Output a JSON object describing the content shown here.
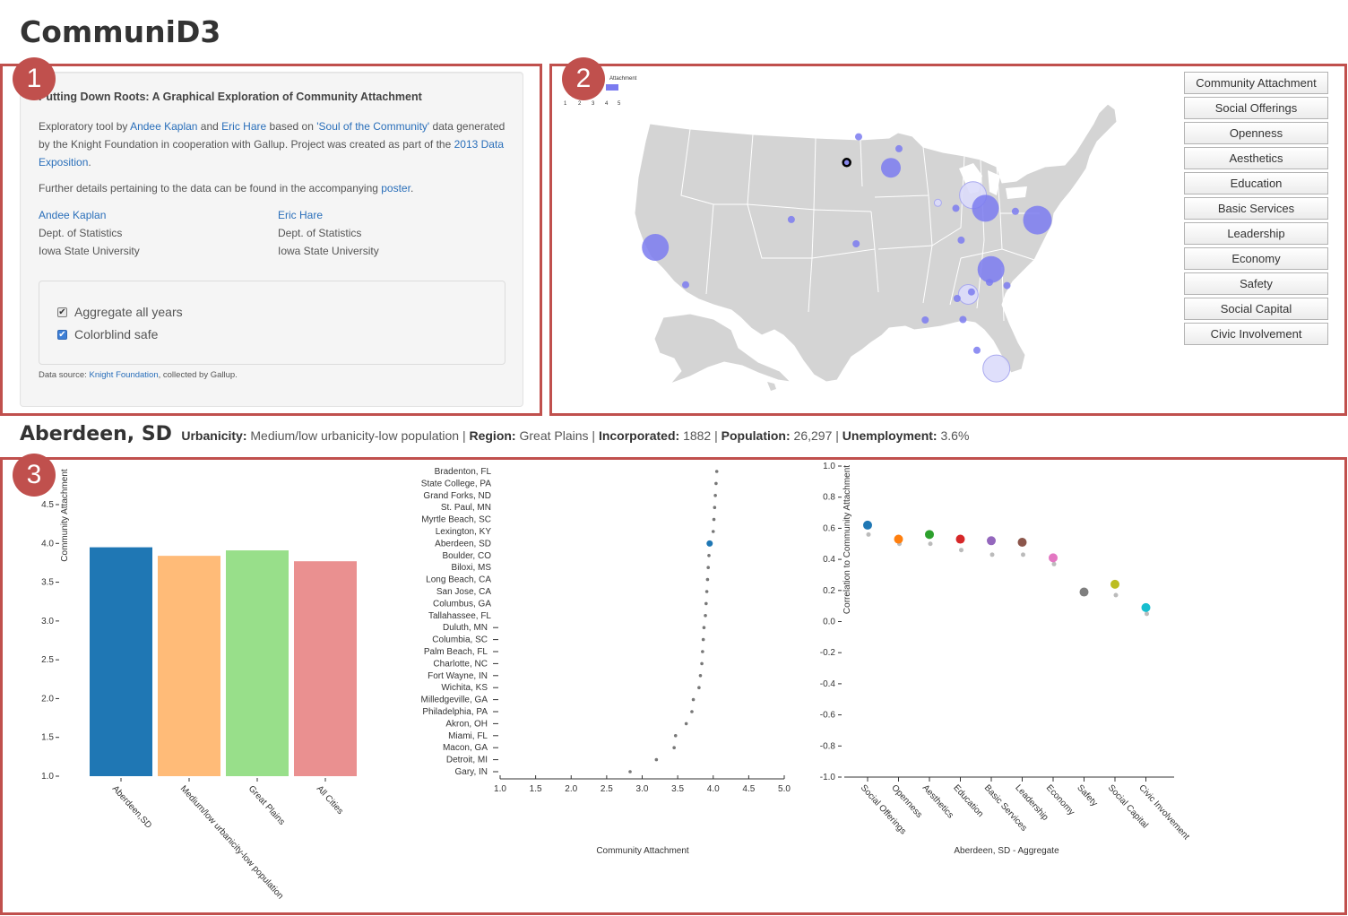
{
  "app": {
    "title": "CommuniD3"
  },
  "badges": [
    "1",
    "2",
    "3"
  ],
  "info": {
    "heading": "Putting Down Roots: A Graphical Exploration of Community Attachment",
    "p1_a": "Exploratory tool by ",
    "p1_author1": "Andee Kaplan",
    "p1_b": " and ",
    "p1_author2": "Eric Hare",
    "p1_c": " based on ",
    "p1_data_link": "'Soul of the Community'",
    "p1_d": " data generated by the Knight Foundation in cooperation with Gallup. Project was created as part of the ",
    "p1_expo_link": "2013 Data Exposition",
    "p1_e": ".",
    "p2_a": "Further details pertaining to the data can be found in the accompanying ",
    "p2_poster_link": "poster",
    "p2_b": ".",
    "authors": [
      {
        "name": "Andee Kaplan",
        "dept": "Dept. of Statistics",
        "univ": "Iowa State University"
      },
      {
        "name": "Eric Hare",
        "dept": "Dept. of Statistics",
        "univ": "Iowa State University"
      }
    ],
    "options": {
      "aggregate_label": "Aggregate all years",
      "aggregate_checked": true,
      "colorblind_label": "Colorblind safe",
      "colorblind_checked": true
    },
    "source_a": "Data source: ",
    "source_link": "Knight Foundation",
    "source_b": ", collected by Gallup."
  },
  "map": {
    "legend_title": "Attachment",
    "legend_ticks": [
      "1",
      "2",
      "3",
      "4",
      "5"
    ],
    "land_color": "#d4d4d4",
    "border_color": "#ffffff",
    "bubble_color": "#7b7bf0",
    "cities": [
      {
        "name": "Aberdeen, SD",
        "lon": -98.49,
        "lat": 45.46,
        "r": 4,
        "selected": true
      },
      {
        "name": "Grand Forks, ND",
        "lon": -97.03,
        "lat": 47.92,
        "r": 4
      },
      {
        "name": "Duluth, MN",
        "lon": -92.1,
        "lat": 46.78,
        "r": 4
      },
      {
        "name": "St. Paul, MN",
        "lon": -93.09,
        "lat": 44.95,
        "r": 11
      },
      {
        "name": "Boulder, CO",
        "lon": -105.27,
        "lat": 40.01,
        "r": 4
      },
      {
        "name": "Wichita, KS",
        "lon": -97.34,
        "lat": 37.69,
        "r": 4
      },
      {
        "name": "San Jose, CA",
        "lon": -121.89,
        "lat": 37.34,
        "r": 15
      },
      {
        "name": "Long Beach, CA",
        "lon": -118.19,
        "lat": 33.77,
        "r": 4
      },
      {
        "name": "Gary, IN",
        "lon": -87.35,
        "lat": 41.6,
        "r": 4,
        "light": true
      },
      {
        "name": "Fort Wayne, IN",
        "lon": -85.14,
        "lat": 41.08,
        "r": 4
      },
      {
        "name": "Detroit, MI",
        "lon": -83.05,
        "lat": 42.33,
        "r": 15,
        "light": true
      },
      {
        "name": "Akron, OH",
        "lon": -81.52,
        "lat": 41.08,
        "r": 15
      },
      {
        "name": "State College, PA",
        "lon": -77.86,
        "lat": 40.79,
        "r": 4
      },
      {
        "name": "Philadelphia, PA",
        "lon": -75.17,
        "lat": 39.95,
        "r": 16
      },
      {
        "name": "Lexington, KY",
        "lon": -84.5,
        "lat": 38.04,
        "r": 4
      },
      {
        "name": "Charlotte, NC",
        "lon": -80.84,
        "lat": 35.23,
        "r": 15
      },
      {
        "name": "Columbia, SC",
        "lon": -81.03,
        "lat": 34.0,
        "r": 4
      },
      {
        "name": "Myrtle Beach, SC",
        "lon": -78.89,
        "lat": 33.69,
        "r": 4
      },
      {
        "name": "Macon, GA",
        "lon": -83.63,
        "lat": 32.84,
        "r": 11,
        "light": true
      },
      {
        "name": "Milledgeville, GA",
        "lon": -83.23,
        "lat": 33.08,
        "r": 4
      },
      {
        "name": "Columbus, GA",
        "lon": -84.99,
        "lat": 32.46,
        "r": 4
      },
      {
        "name": "Biloxi, MS",
        "lon": -88.89,
        "lat": 30.4,
        "r": 4
      },
      {
        "name": "Tallahassee, FL",
        "lon": -84.28,
        "lat": 30.44,
        "r": 4
      },
      {
        "name": "Bradenton, FL",
        "lon": -82.57,
        "lat": 27.5,
        "r": 4
      },
      {
        "name": "Miami, FL",
        "lon": -80.19,
        "lat": 25.76,
        "r": 15,
        "light": true
      }
    ]
  },
  "metrics": [
    "Community Attachment",
    "Social Offerings",
    "Openness",
    "Aesthetics",
    "Education",
    "Basic Services",
    "Leadership",
    "Economy",
    "Safety",
    "Social Capital",
    "Civic Involvement"
  ],
  "detail": {
    "city": "Aberdeen, SD",
    "fields": [
      {
        "label": "Urbanicity:",
        "value": "Medium/low urbanicity-low population"
      },
      {
        "label": "Region:",
        "value": "Great Plains"
      },
      {
        "label": "Incorporated:",
        "value": "1882"
      },
      {
        "label": "Population:",
        "value": "26,297"
      },
      {
        "label": "Unemployment:",
        "value": "3.6%"
      }
    ]
  },
  "chart_data": [
    {
      "type": "bar",
      "ylabel": "Community Attachment",
      "ylim": [
        1.0,
        4.5
      ],
      "yticks": [
        "1.0",
        "1.5",
        "2.0",
        "2.5",
        "3.0",
        "3.5",
        "4.0",
        "4.5"
      ],
      "categories": [
        "Aberdeen,SD",
        "Medium/low urbanicity-low population",
        "Great Plains",
        "All Cities"
      ],
      "values": [
        3.95,
        3.84,
        3.91,
        3.77
      ],
      "colors": [
        "#1f77b4",
        "#ffbb78",
        "#98df8a",
        "#ea9090"
      ]
    },
    {
      "type": "scatter",
      "xlabel": "Community Attachment",
      "xlim": [
        1.0,
        5.0
      ],
      "xticks": [
        "1.0",
        "1.5",
        "2.0",
        "2.5",
        "3.0",
        "3.5",
        "4.0",
        "4.5",
        "5.0"
      ],
      "categories": [
        "Bradenton, FL",
        "State College, PA",
        "Grand Forks, ND",
        "St. Paul, MN",
        "Myrtle Beach, SC",
        "Lexington, KY",
        "Aberdeen, SD",
        "Boulder, CO",
        "Biloxi, MS",
        "Long Beach, CA",
        "San Jose, CA",
        "Columbus, GA",
        "Tallahassee, FL",
        "Duluth, MN",
        "Columbia, SC",
        "Palm Beach, FL",
        "Charlotte, NC",
        "Fort Wayne, IN",
        "Wichita, KS",
        "Milledgeville, GA",
        "Philadelphia, PA",
        "Akron, OH",
        "Miami, FL",
        "Macon, GA",
        "Detroit, MI",
        "Gary, IN"
      ],
      "values": [
        4.05,
        4.04,
        4.03,
        4.02,
        4.01,
        4.0,
        3.95,
        3.94,
        3.93,
        3.92,
        3.91,
        3.9,
        3.89,
        3.87,
        3.86,
        3.85,
        3.84,
        3.82,
        3.8,
        3.72,
        3.7,
        3.62,
        3.47,
        3.45,
        3.2,
        2.83
      ],
      "highlight": "Aberdeen, SD",
      "dash_from_index": 13
    },
    {
      "type": "scatter",
      "xlabel": "Aberdeen, SD - Aggregate",
      "ylabel": "Correlation to Community Attachment",
      "ylim": [
        -1.0,
        1.0
      ],
      "yticks": [
        "1.0",
        "0.8",
        "0.6",
        "0.4",
        "0.2",
        "0.0",
        "-0.2",
        "-0.4",
        "-0.6",
        "-0.8",
        "-1.0"
      ],
      "categories": [
        "Social Offerings",
        "Openness",
        "Aesthetics",
        "Education",
        "Basic Services",
        "Leadership",
        "Economy",
        "Safety",
        "Social Capital",
        "Civic Involvement"
      ],
      "values": [
        0.62,
        0.53,
        0.56,
        0.53,
        0.52,
        0.51,
        0.41,
        0.19,
        0.24,
        0.09
      ],
      "reference_values": [
        0.56,
        0.5,
        0.5,
        0.46,
        0.43,
        0.43,
        0.37,
        0.19,
        0.17,
        0.05
      ],
      "colors": [
        "#1f77b4",
        "#ff7f0e",
        "#2ca02c",
        "#d62728",
        "#9467bd",
        "#8c564b",
        "#e377c2",
        "#7f7f7f",
        "#bcbd22",
        "#17becf"
      ],
      "reference_color": "#bbbbbb"
    }
  ]
}
